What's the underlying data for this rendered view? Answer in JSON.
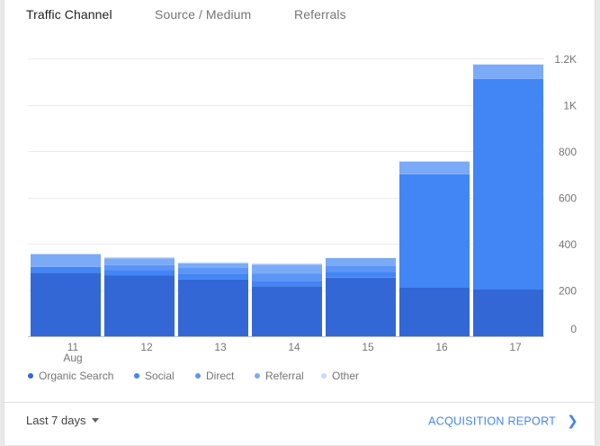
{
  "tabs": [
    {
      "label": "Traffic Channel",
      "active": true
    },
    {
      "label": "Source / Medium",
      "active": false
    },
    {
      "label": "Referrals",
      "active": false
    }
  ],
  "chart_data": {
    "type": "bar",
    "stacked": true,
    "categories": [
      "11",
      "12",
      "13",
      "14",
      "15",
      "16",
      "17"
    ],
    "category_sublabels": [
      "Aug",
      "",
      "",
      "",
      "",
      "",
      ""
    ],
    "series": [
      {
        "name": "Organic Search",
        "color": "#3367d6",
        "values": [
          275,
          262,
          245,
          215,
          253,
          210,
          202
        ]
      },
      {
        "name": "Social",
        "color": "#4285f4",
        "values": [
          25,
          25,
          25,
          25,
          25,
          490,
          910
        ]
      },
      {
        "name": "Direct",
        "color": "#5c95f5",
        "values": [
          0,
          20,
          25,
          30,
          25,
          0,
          0
        ]
      },
      {
        "name": "Referral",
        "color": "#7baaf7",
        "values": [
          55,
          30,
          20,
          40,
          35,
          55,
          62
        ]
      },
      {
        "name": "Other",
        "color": "#c6dafc",
        "values": [
          0,
          5,
          5,
          5,
          0,
          0,
          0
        ]
      }
    ],
    "y_ticks": [
      {
        "value": 0,
        "label": "0"
      },
      {
        "value": 200,
        "label": "200"
      },
      {
        "value": 400,
        "label": "400"
      },
      {
        "value": 600,
        "label": "600"
      },
      {
        "value": 800,
        "label": "800"
      },
      {
        "value": 1000,
        "label": "1K"
      },
      {
        "value": 1200,
        "label": "1.2K"
      }
    ],
    "ylim": [
      0,
      1200
    ],
    "grid": true,
    "y_axis_position": "right",
    "legend_position": "bottom-left"
  },
  "footer": {
    "range_label": "Last 7 days",
    "report_link": "ACQUISITION REPORT"
  }
}
